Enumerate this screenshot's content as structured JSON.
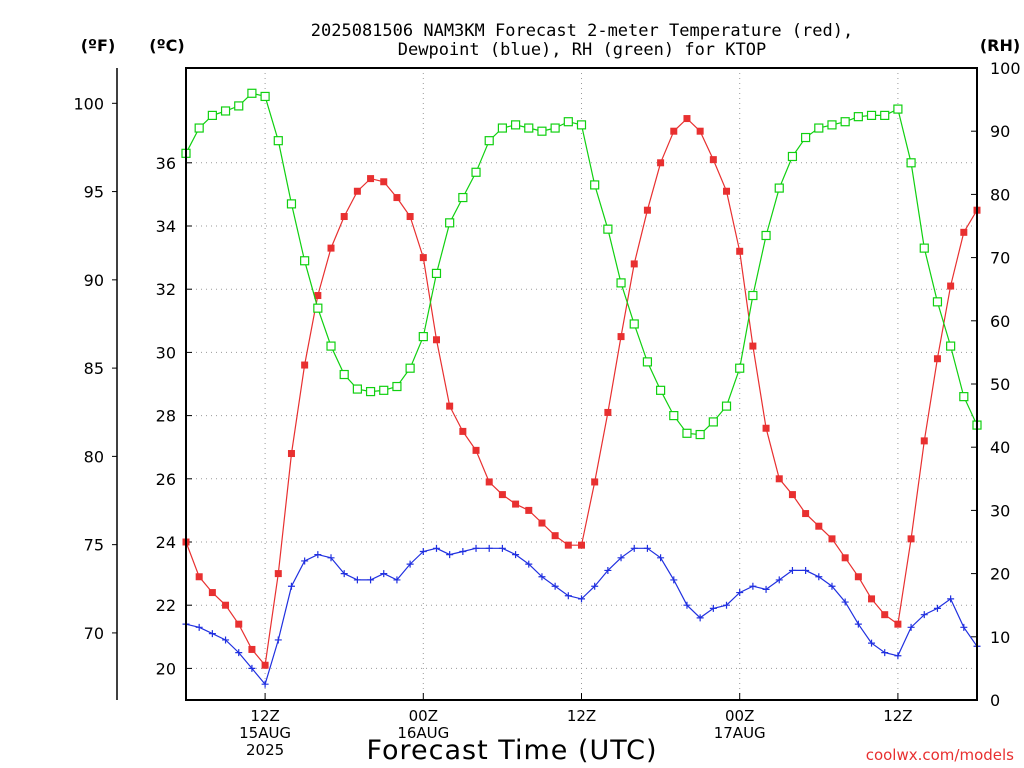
{
  "chart_data": {
    "type": "line",
    "title": [
      "2025081506 NAM3KM Forecast 2-meter Temperature (red),",
      "Dewpoint (blue), RH (green) for KTOP"
    ],
    "xlabel": "Forecast Time (UTC)",
    "credit": "coolwx.com/models",
    "axes": {
      "fahrenheit": {
        "unit_label": "(ºF)",
        "range": [
          66.2,
          102
        ],
        "ticks": [
          70,
          75,
          80,
          85,
          90,
          95,
          100
        ]
      },
      "celsius": {
        "unit_label": "(ºC)",
        "range": [
          19,
          39
        ],
        "ticks": [
          20,
          22,
          24,
          26,
          28,
          30,
          32,
          34,
          36
        ]
      },
      "rh": {
        "unit_label": "(RH)",
        "range": [
          0,
          100
        ],
        "ticks": [
          0,
          10,
          20,
          30,
          40,
          50,
          60,
          70,
          80,
          90,
          100
        ]
      }
    },
    "x_ticks": [
      {
        "hour": 12,
        "lines": [
          "12Z",
          "15AUG",
          "2025"
        ]
      },
      {
        "hour": 24,
        "lines": [
          "00Z",
          "16AUG"
        ]
      },
      {
        "hour": 36,
        "lines": [
          "12Z"
        ]
      },
      {
        "hour": 48,
        "lines": [
          "00Z",
          "17AUG"
        ]
      },
      {
        "hour": 60,
        "lines": [
          "12Z"
        ]
      }
    ],
    "x_range": [
      6,
      66
    ],
    "hours": [
      6,
      7,
      8,
      9,
      10,
      11,
      12,
      13,
      14,
      15,
      16,
      17,
      18,
      19,
      20,
      21,
      22,
      23,
      24,
      25,
      26,
      27,
      28,
      29,
      30,
      31,
      32,
      33,
      34,
      35,
      36,
      37,
      38,
      39,
      40,
      41,
      42,
      43,
      44,
      45,
      46,
      47,
      48,
      49,
      50,
      51,
      52,
      53,
      54,
      55,
      56,
      57,
      58,
      59,
      60,
      61,
      62,
      63,
      64,
      65,
      66
    ],
    "series": [
      {
        "name": "Temperature",
        "units": "C",
        "color": "#e83030",
        "marker": "filled-square",
        "values": [
          24.0,
          22.9,
          22.4,
          22.0,
          21.4,
          20.6,
          20.1,
          23.0,
          26.8,
          29.6,
          31.8,
          33.3,
          34.3,
          35.1,
          35.5,
          35.4,
          34.9,
          34.3,
          33.0,
          30.4,
          28.3,
          27.5,
          26.9,
          25.9,
          25.5,
          25.2,
          25.0,
          24.6,
          24.2,
          23.9,
          23.9,
          25.9,
          28.1,
          30.5,
          32.8,
          34.5,
          36.0,
          37.0,
          37.4,
          37.0,
          36.1,
          35.1,
          33.2,
          30.2,
          27.6,
          26.0,
          25.5,
          24.9,
          24.5,
          24.1,
          23.5,
          22.9,
          22.2,
          21.7,
          21.4,
          24.1,
          27.2,
          29.8,
          32.1,
          33.8,
          34.5
        ]
      },
      {
        "name": "Dewpoint",
        "units": "C",
        "color": "#2030e0",
        "marker": "plus",
        "values": [
          21.4,
          21.3,
          21.1,
          20.9,
          20.5,
          20.0,
          19.5,
          20.9,
          22.6,
          23.4,
          23.6,
          23.5,
          23.0,
          22.8,
          22.8,
          23.0,
          22.8,
          23.3,
          23.7,
          23.8,
          23.6,
          23.7,
          23.8,
          23.8,
          23.8,
          23.6,
          23.3,
          22.9,
          22.6,
          22.3,
          22.2,
          22.6,
          23.1,
          23.5,
          23.8,
          23.8,
          23.5,
          22.8,
          22.0,
          21.6,
          21.9,
          22.0,
          22.4,
          22.6,
          22.5,
          22.8,
          23.1,
          23.1,
          22.9,
          22.6,
          22.1,
          21.4,
          20.8,
          20.5,
          20.4,
          21.3,
          21.7,
          21.9,
          22.2,
          21.3,
          20.7
        ]
      },
      {
        "name": "RH",
        "units": "%",
        "color": "#10d010",
        "marker": "hollow-square",
        "values": [
          86.5,
          90.5,
          92.5,
          93.2,
          94.0,
          96.0,
          95.5,
          88.5,
          78.5,
          69.5,
          62.0,
          56.0,
          51.5,
          49.2,
          48.8,
          49.0,
          49.6,
          52.5,
          57.5,
          67.5,
          75.5,
          79.5,
          83.5,
          88.5,
          90.5,
          91.0,
          90.5,
          90.0,
          90.5,
          91.5,
          91.0,
          81.5,
          74.5,
          66.0,
          59.5,
          53.5,
          49.0,
          45.0,
          42.2,
          42.0,
          44.0,
          46.5,
          52.5,
          64.0,
          73.5,
          81.0,
          86.0,
          89.0,
          90.5,
          91.0,
          91.5,
          92.3,
          92.5,
          92.5,
          93.5,
          85.0,
          71.5,
          63.0,
          56.0,
          48.0,
          43.5
        ]
      }
    ]
  }
}
